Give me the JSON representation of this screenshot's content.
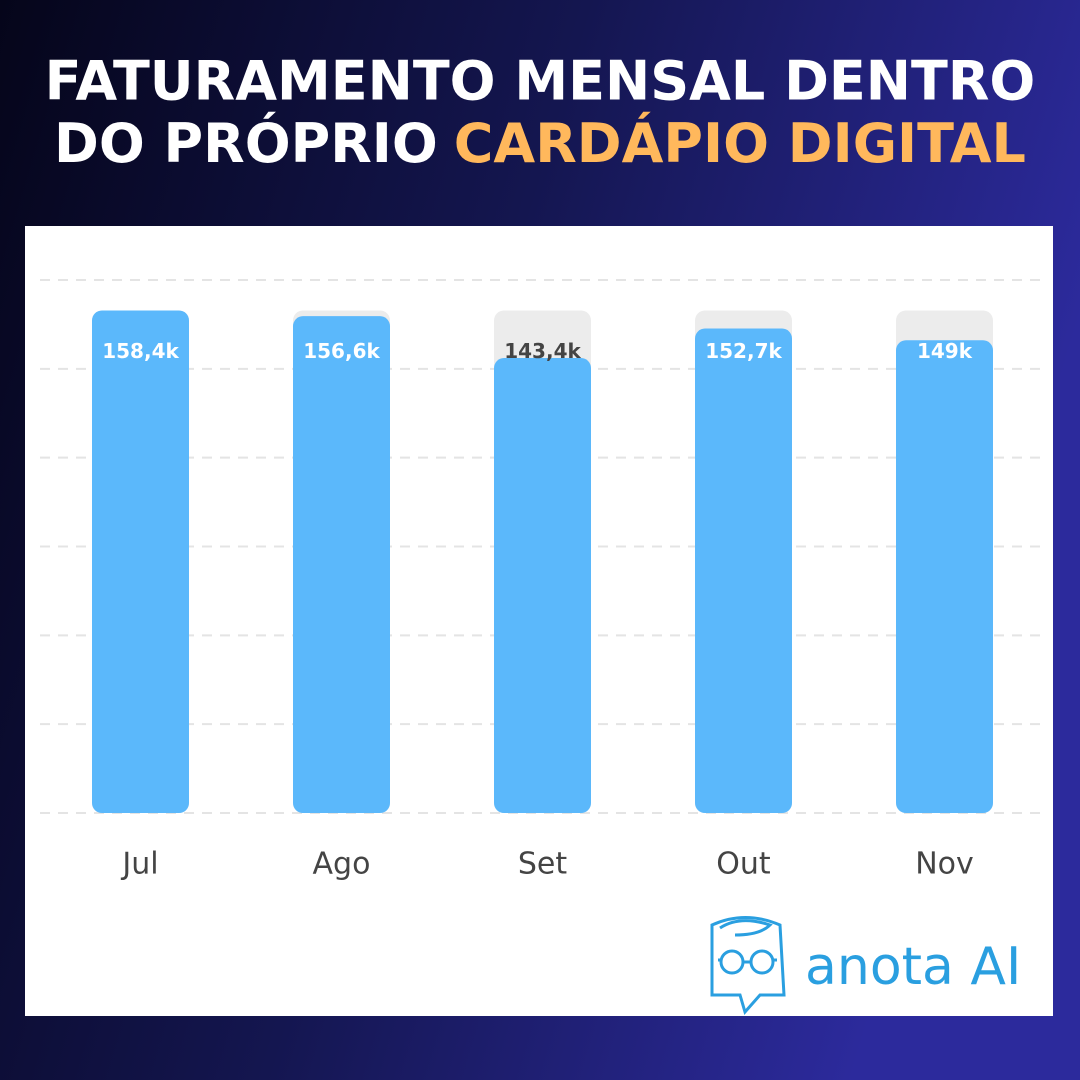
{
  "chart_data": {
    "type": "bar",
    "title": {
      "line1": "FATURAMENTO MENSAL DENTRO",
      "line2": "DO PRÓPRIO",
      "highlight": "CARDÁPIO DIGITAL"
    },
    "categories": [
      "Jul",
      "Ago",
      "Set",
      "Out",
      "Nov"
    ],
    "values": [
      158.4,
      156.6,
      143.4,
      152.7,
      149
    ],
    "value_labels": [
      "158,4k",
      "156,6k",
      "143,4k",
      "152,7k",
      "149k"
    ],
    "color": "#5bb8fb",
    "ylim": [
      0,
      168
    ],
    "yticks": [
      0,
      28,
      56,
      84,
      112,
      140,
      168
    ],
    "grid": true
  },
  "brand": "anota AI"
}
